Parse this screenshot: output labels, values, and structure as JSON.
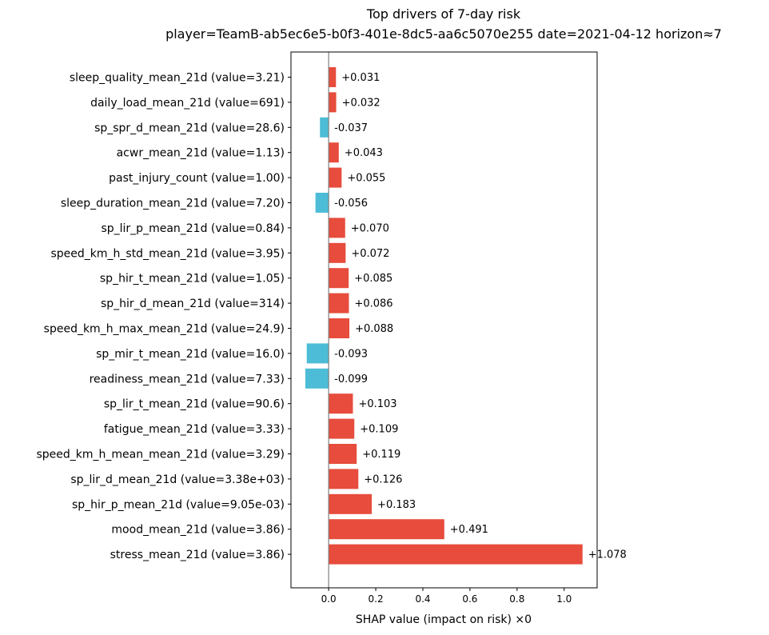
{
  "chart_data": {
    "type": "bar",
    "orientation": "horizontal",
    "title": "Top drivers of 7-day risk",
    "subtitle": "player=TeamB-ab5ec6e5-b0f3-401e-8dc5-aa6c5070e255  date=2021-04-12  horizon≈7",
    "xlabel": "SHAP value (impact on risk) ×0",
    "ylabel": "",
    "xlim": [
      -0.16,
      1.14
    ],
    "xticks": [
      0.0,
      0.2,
      0.4,
      0.6,
      0.8,
      1.0
    ],
    "xtick_labels": [
      "0.0",
      "0.2",
      "0.4",
      "0.6",
      "0.8",
      "1.0"
    ],
    "grid": false,
    "zero_line": true,
    "colors": {
      "positive": "#e74c3c",
      "negative": "#4dbcd6",
      "zero_line": "#808080"
    },
    "categories": [
      "sleep_quality_mean_21d  (value=3.21)",
      "daily_load_mean_21d  (value=691)",
      "sp_spr_d_mean_21d  (value=28.6)",
      "acwr_mean_21d  (value=1.13)",
      "past_injury_count  (value=1.00)",
      "sleep_duration_mean_21d  (value=7.20)",
      "sp_lir_p_mean_21d  (value=0.84)",
      "speed_km_h_std_mean_21d  (value=3.95)",
      "sp_hir_t_mean_21d  (value=1.05)",
      "sp_hir_d_mean_21d  (value=314)",
      "speed_km_h_max_mean_21d  (value=24.9)",
      "sp_mir_t_mean_21d  (value=16.0)",
      "readiness_mean_21d  (value=7.33)",
      "sp_lir_t_mean_21d  (value=90.6)",
      "fatigue_mean_21d  (value=3.33)",
      "speed_km_h_mean_mean_21d  (value=3.29)",
      "sp_lir_d_mean_21d  (value=3.38e+03)",
      "sp_hir_p_mean_21d  (value=9.05e-03)",
      "mood_mean_21d  (value=3.86)",
      "stress_mean_21d  (value=3.86)"
    ],
    "values": [
      0.031,
      0.032,
      -0.037,
      0.043,
      0.055,
      -0.056,
      0.07,
      0.072,
      0.085,
      0.086,
      0.088,
      -0.093,
      -0.099,
      0.103,
      0.109,
      0.119,
      0.126,
      0.183,
      0.491,
      1.078
    ],
    "value_labels": [
      "+0.031",
      "+0.032",
      "-0.037",
      "+0.043",
      "+0.055",
      "-0.056",
      "+0.070",
      "+0.072",
      "+0.085",
      "+0.086",
      "+0.088",
      "-0.093",
      "-0.099",
      "+0.103",
      "+0.109",
      "+0.119",
      "+0.126",
      "+0.183",
      "+0.491",
      "+1.078"
    ]
  }
}
